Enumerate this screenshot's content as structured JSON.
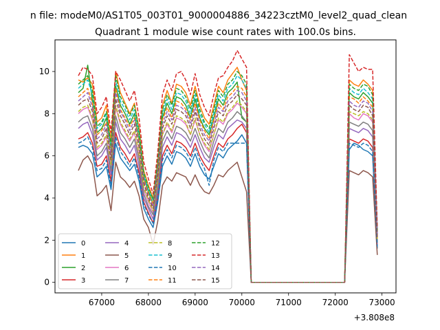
{
  "chart_data": {
    "type": "line",
    "suptitle": "n file: modeM0/AS1T05_003T01_9000004886_34223cztM0_level2_quad_clean",
    "title": "Quadrant 1 module wise count rates with 100.0s bins.",
    "xlabel": "",
    "ylabel": "",
    "x_offset_label": "+3.808e8",
    "xlim": [
      66000,
      73300
    ],
    "ylim": [
      -0.5,
      11.5
    ],
    "x_ticks": [
      67000,
      68000,
      69000,
      70000,
      71000,
      72000,
      73000
    ],
    "x_tick_labels": [
      "67000",
      "68000",
      "69000",
      "70000",
      "71000",
      "72000",
      "73000"
    ],
    "y_ticks": [
      0,
      2,
      4,
      6,
      8,
      10
    ],
    "y_tick_labels": [
      "0",
      "2",
      "4",
      "6",
      "8",
      "10"
    ],
    "legend_position": "lower-left",
    "colors": [
      "#1f77b4",
      "#ff7f0e",
      "#2ca02c",
      "#d62728",
      "#9467bd",
      "#8c564b",
      "#e377c2",
      "#7f7f7f",
      "#bcbd22",
      "#17becf"
    ],
    "seg1_x": [
      66500,
      66600,
      66700,
      66800,
      66900,
      67000,
      67100,
      67200,
      67300,
      67400,
      67500,
      67600,
      67700,
      67800,
      67900,
      68000,
      68100,
      68200,
      68300,
      68400,
      68500,
      68600,
      68700,
      68800,
      68900,
      69000,
      69100,
      69200,
      69300,
      69400,
      69500,
      69600,
      69700,
      69800,
      69900,
      70000,
      70100,
      70200
    ],
    "gap_x": [
      70200,
      72200
    ],
    "seg2_x": [
      72200,
      72300,
      72400,
      72500,
      72600,
      72700,
      72800,
      72900
    ],
    "series": [
      {
        "name": "0",
        "style": "solid",
        "level": 6.3,
        "seg1_values": [
          6.4,
          6.5,
          6.4,
          6.1,
          5.0,
          5.2,
          5.5,
          4.4,
          6.6,
          5.9,
          5.6,
          5.3,
          5.6,
          4.8,
          3.5,
          3.0,
          2.6,
          3.8,
          5.5,
          6.0,
          5.6,
          6.2,
          6.1,
          5.9,
          5.5,
          6.1,
          5.5,
          5.1,
          4.9,
          5.5,
          6.1,
          5.9,
          6.3,
          6.5,
          6.7,
          7.0,
          6.6,
          0.0
        ],
        "seg2_values": [
          0.0,
          6.3,
          6.6,
          6.5,
          6.3,
          6.2,
          6.0,
          1.6
        ]
      },
      {
        "name": "1",
        "style": "solid",
        "level": 9.6,
        "seg1_values": [
          9.6,
          9.5,
          9.7,
          9.4,
          7.6,
          7.8,
          8.4,
          6.7,
          10.0,
          9.0,
          8.5,
          8.0,
          8.5,
          7.3,
          5.3,
          4.6,
          4.0,
          5.8,
          8.4,
          9.1,
          8.5,
          9.4,
          9.3,
          9.0,
          8.4,
          9.3,
          8.4,
          7.8,
          7.5,
          8.4,
          9.3,
          9.0,
          9.6,
          9.9,
          10.2,
          9.6,
          9.1,
          0.0
        ],
        "seg2_values": [
          0.0,
          9.6,
          9.4,
          9.3,
          9.6,
          9.4,
          9.1,
          2.4
        ]
      },
      {
        "name": "2",
        "style": "solid",
        "level": 9.0,
        "seg1_values": [
          9.0,
          9.2,
          10.3,
          8.6,
          7.1,
          7.3,
          7.8,
          6.3,
          9.3,
          8.4,
          8.0,
          7.5,
          8.0,
          6.8,
          5.0,
          4.3,
          3.7,
          5.4,
          7.8,
          8.5,
          8.0,
          8.8,
          8.7,
          8.4,
          7.8,
          8.7,
          7.8,
          7.3,
          7.0,
          7.8,
          8.7,
          8.4,
          9.0,
          9.2,
          9.5,
          7.8,
          7.6,
          0.0
        ],
        "seg2_values": [
          0.0,
          9.0,
          8.8,
          8.7,
          9.0,
          8.8,
          8.5,
          2.3
        ]
      },
      {
        "name": "3",
        "style": "solid",
        "level": 6.8,
        "seg1_values": [
          6.8,
          6.9,
          7.1,
          6.6,
          5.5,
          5.6,
          6.0,
          4.8,
          7.1,
          6.4,
          6.1,
          5.7,
          6.1,
          5.2,
          3.8,
          3.3,
          2.8,
          4.1,
          6.0,
          6.5,
          6.1,
          6.7,
          6.6,
          6.4,
          6.0,
          6.6,
          6.0,
          5.6,
          5.3,
          6.0,
          6.6,
          6.4,
          6.8,
          7.0,
          7.3,
          7.5,
          7.1,
          0.0
        ],
        "seg2_values": [
          0.0,
          6.8,
          6.7,
          6.6,
          6.8,
          6.7,
          6.4,
          1.7
        ]
      },
      {
        "name": "4",
        "style": "solid",
        "level": 7.3,
        "seg1_values": [
          7.3,
          7.5,
          7.6,
          7.0,
          5.8,
          6.0,
          6.4,
          5.1,
          7.6,
          6.8,
          6.5,
          6.1,
          6.5,
          5.5,
          4.0,
          3.5,
          3.0,
          4.4,
          6.4,
          6.9,
          6.5,
          7.1,
          7.0,
          6.8,
          6.4,
          7.0,
          6.4,
          5.9,
          5.7,
          6.4,
          7.0,
          6.8,
          7.3,
          7.5,
          7.7,
          7.6,
          7.3,
          0.0
        ],
        "seg2_values": [
          0.0,
          7.3,
          7.2,
          7.1,
          7.3,
          7.2,
          6.9,
          1.8
        ]
      },
      {
        "name": "5",
        "style": "solid",
        "level": 5.3,
        "seg1_values": [
          5.3,
          5.8,
          6.0,
          5.6,
          4.1,
          4.3,
          4.6,
          3.4,
          5.7,
          5.0,
          4.8,
          4.5,
          4.8,
          4.1,
          3.0,
          2.6,
          1.8,
          2.9,
          4.6,
          5.0,
          4.8,
          5.2,
          5.1,
          5.0,
          4.6,
          5.1,
          4.6,
          4.3,
          4.2,
          4.6,
          5.1,
          5.0,
          5.3,
          5.5,
          5.7,
          5.0,
          4.3,
          0.0
        ],
        "seg2_values": [
          0.0,
          5.3,
          5.2,
          5.1,
          5.3,
          5.2,
          5.0,
          1.3
        ]
      },
      {
        "name": "6",
        "style": "solid",
        "level": 8.0,
        "seg1_values": [
          8.0,
          8.2,
          8.3,
          7.7,
          6.3,
          6.5,
          6.9,
          5.6,
          8.3,
          7.5,
          7.1,
          6.7,
          7.1,
          6.0,
          4.4,
          3.8,
          3.3,
          4.8,
          7.0,
          7.5,
          7.1,
          7.8,
          7.7,
          7.5,
          7.0,
          7.7,
          7.0,
          6.5,
          6.2,
          7.0,
          7.7,
          7.5,
          8.0,
          8.2,
          8.5,
          8.3,
          8.0,
          0.0
        ],
        "seg2_values": [
          0.0,
          8.0,
          7.8,
          7.7,
          8.0,
          7.9,
          7.6,
          2.0
        ]
      },
      {
        "name": "7",
        "style": "solid",
        "level": 7.6,
        "seg1_values": [
          7.6,
          7.8,
          7.9,
          7.3,
          6.0,
          6.2,
          6.6,
          5.3,
          7.9,
          7.1,
          6.8,
          6.4,
          6.8,
          5.8,
          4.2,
          3.6,
          3.2,
          4.6,
          6.7,
          7.2,
          6.8,
          7.4,
          7.3,
          7.1,
          6.7,
          7.3,
          6.7,
          6.2,
          5.9,
          6.7,
          7.3,
          7.1,
          7.6,
          7.8,
          8.1,
          7.9,
          7.6,
          0.0
        ],
        "seg2_values": [
          0.0,
          7.6,
          7.5,
          7.4,
          7.6,
          7.5,
          7.2,
          1.9
        ]
      },
      {
        "name": "8",
        "style": "dashed",
        "level": 8.1,
        "seg1_values": [
          8.1,
          8.3,
          8.4,
          7.8,
          6.4,
          6.6,
          7.0,
          5.6,
          8.4,
          7.6,
          7.2,
          6.8,
          7.2,
          6.1,
          4.5,
          3.9,
          3.4,
          4.9,
          7.0,
          7.6,
          7.2,
          7.9,
          7.8,
          7.6,
          7.0,
          7.8,
          7.0,
          6.6,
          6.3,
          7.0,
          7.8,
          7.6,
          8.1,
          8.3,
          8.6,
          8.4,
          8.1,
          0.0
        ],
        "seg2_values": [
          0.0,
          8.1,
          8.0,
          7.9,
          8.1,
          8.0,
          7.7,
          2.0
        ]
      },
      {
        "name": "9",
        "style": "dashed",
        "level": 9.2,
        "seg1_values": [
          9.2,
          9.4,
          9.6,
          8.9,
          7.3,
          7.5,
          8.0,
          6.4,
          9.6,
          8.6,
          8.2,
          7.7,
          8.2,
          7.0,
          5.1,
          4.4,
          3.9,
          5.6,
          8.0,
          8.7,
          8.2,
          9.0,
          8.9,
          8.6,
          8.0,
          8.9,
          8.0,
          7.5,
          7.1,
          8.0,
          8.9,
          8.6,
          9.2,
          9.4,
          9.8,
          9.6,
          9.2,
          0.0
        ],
        "seg2_values": [
          0.0,
          9.2,
          9.0,
          8.9,
          9.2,
          9.0,
          8.7,
          2.3
        ]
      },
      {
        "name": "10",
        "style": "dashed",
        "level": 6.6,
        "seg1_values": [
          6.6,
          6.7,
          6.9,
          6.4,
          5.3,
          5.4,
          5.8,
          4.6,
          6.9,
          6.2,
          5.9,
          5.5,
          5.9,
          5.0,
          3.7,
          3.2,
          2.8,
          4.0,
          5.8,
          6.3,
          5.9,
          6.5,
          6.4,
          6.2,
          5.8,
          6.4,
          5.8,
          5.4,
          4.6,
          5.8,
          6.4,
          6.2,
          6.6,
          6.6,
          6.6,
          6.6,
          6.6,
          0.0
        ],
        "seg2_values": [
          0.0,
          6.6,
          6.5,
          6.4,
          6.6,
          6.5,
          6.2,
          1.7
        ]
      },
      {
        "name": "11",
        "style": "dashed",
        "level": 8.8,
        "seg1_values": [
          8.8,
          9.0,
          9.2,
          8.5,
          7.0,
          7.2,
          7.6,
          6.1,
          9.2,
          8.2,
          7.8,
          7.4,
          7.8,
          6.7,
          4.9,
          4.2,
          3.7,
          5.4,
          7.7,
          8.3,
          7.8,
          8.6,
          8.5,
          8.2,
          7.7,
          8.5,
          7.7,
          7.2,
          6.8,
          7.7,
          8.5,
          8.2,
          8.8,
          9.0,
          9.3,
          9.2,
          8.8,
          0.0
        ],
        "seg2_values": [
          0.0,
          8.8,
          8.7,
          8.5,
          8.8,
          8.6,
          8.3,
          2.2
        ]
      },
      {
        "name": "12",
        "style": "dashed",
        "level": 9.4,
        "seg1_values": [
          9.4,
          9.6,
          9.8,
          9.1,
          7.4,
          7.6,
          8.1,
          6.5,
          9.8,
          8.8,
          8.4,
          7.9,
          8.4,
          7.2,
          5.2,
          4.5,
          3.9,
          5.7,
          8.2,
          8.9,
          8.4,
          9.2,
          9.1,
          8.8,
          8.2,
          9.1,
          8.2,
          7.6,
          7.3,
          8.2,
          9.1,
          8.8,
          9.4,
          9.6,
          10.0,
          9.8,
          9.4,
          0.0
        ],
        "seg2_values": [
          0.0,
          9.4,
          9.2,
          9.1,
          9.4,
          9.3,
          8.9,
          2.4
        ]
      },
      {
        "name": "13",
        "style": "dashed",
        "level": 10.2,
        "seg1_values": [
          9.8,
          10.2,
          10.1,
          9.8,
          8.0,
          8.3,
          8.8,
          7.1,
          10.0,
          9.6,
          9.1,
          8.6,
          9.1,
          7.8,
          5.7,
          4.9,
          4.2,
          6.2,
          8.9,
          9.6,
          9.1,
          9.9,
          10.0,
          9.6,
          8.9,
          9.9,
          8.9,
          8.3,
          7.9,
          8.9,
          9.7,
          9.8,
          10.2,
          10.5,
          11.0,
          10.6,
          10.2,
          0.0
        ],
        "seg2_values": [
          0.0,
          10.8,
          10.4,
          10.0,
          10.2,
          10.1,
          10.1,
          2.6
        ]
      },
      {
        "name": "14",
        "style": "dashed",
        "level": 8.6,
        "seg1_values": [
          8.6,
          8.8,
          9.0,
          8.3,
          6.8,
          7.0,
          7.5,
          6.0,
          9.0,
          8.1,
          7.7,
          7.2,
          7.7,
          6.5,
          4.8,
          4.1,
          3.6,
          5.3,
          7.5,
          8.1,
          7.7,
          8.4,
          8.3,
          8.1,
          7.5,
          8.3,
          7.5,
          7.0,
          6.7,
          7.5,
          8.3,
          8.1,
          8.6,
          8.8,
          9.1,
          9.0,
          8.6,
          0.0
        ],
        "seg2_values": [
          0.0,
          8.6,
          8.4,
          8.3,
          8.6,
          8.5,
          8.1,
          2.2
        ]
      },
      {
        "name": "15",
        "style": "dashed",
        "level": 8.4,
        "seg1_values": [
          8.4,
          8.6,
          8.7,
          8.1,
          6.6,
          6.8,
          7.3,
          5.8,
          8.7,
          7.9,
          7.5,
          7.0,
          7.5,
          6.4,
          4.7,
          4.0,
          3.5,
          5.1,
          7.3,
          7.9,
          7.5,
          8.2,
          8.1,
          7.9,
          7.3,
          8.1,
          7.3,
          6.8,
          6.5,
          7.3,
          8.1,
          7.9,
          8.4,
          8.6,
          8.9,
          8.7,
          8.4,
          0.0
        ],
        "seg2_values": [
          0.0,
          8.4,
          8.2,
          8.1,
          8.4,
          8.3,
          7.9,
          2.1
        ]
      }
    ]
  }
}
